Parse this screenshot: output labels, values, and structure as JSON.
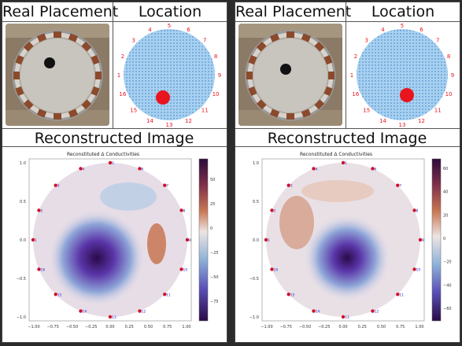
{
  "panels": [
    {
      "headers": {
        "placement": "Real Placement",
        "location": "Location",
        "recon": "Reconstructed Image"
      },
      "plot_title": "Reconstituted Δ Conductivities",
      "electrode_labels": [
        "1",
        "2",
        "3",
        "4",
        "5",
        "6",
        "7",
        "8",
        "9",
        "10",
        "11",
        "12",
        "13",
        "14",
        "15",
        "16"
      ],
      "colorbar_ticks": [
        "50",
        "25",
        "0",
        "−25",
        "−50",
        "−75"
      ],
      "x_ticks": [
        "−1.00",
        "−0.75",
        "−0.50",
        "−0.25",
        "0.00",
        "0.25",
        "0.50",
        "0.75",
        "1.00"
      ],
      "y_ticks": [
        "1.0",
        "0.5",
        "0.0",
        "−0.5",
        "−1.0"
      ],
      "colors": {
        "blob": "#2b0a4a",
        "artifact": "#c26a4e",
        "target": "#e8141e"
      }
    },
    {
      "headers": {
        "placement": "Real Placement",
        "location": "Location",
        "recon": "Reconstructed Image"
      },
      "plot_title": "Reconstituted Δ Conductivities",
      "electrode_labels": [
        "1",
        "2",
        "3",
        "4",
        "5",
        "6",
        "7",
        "8",
        "9",
        "10",
        "11",
        "12",
        "13",
        "14",
        "15",
        "16"
      ],
      "colorbar_ticks": [
        "60",
        "40",
        "20",
        "0",
        "−20",
        "−40",
        "−60"
      ],
      "x_ticks": [
        "−1.00",
        "−0.75",
        "−0.50",
        "−0.25",
        "0.00",
        "0.25",
        "0.50",
        "0.75",
        "1.00"
      ],
      "y_ticks": [
        "1.0",
        "0.5",
        "0.0",
        "−0.5",
        "−1.0"
      ],
      "colors": {
        "blob": "#2b0a4a",
        "artifact": "#c26a4e",
        "target": "#e8141e"
      }
    }
  ]
}
